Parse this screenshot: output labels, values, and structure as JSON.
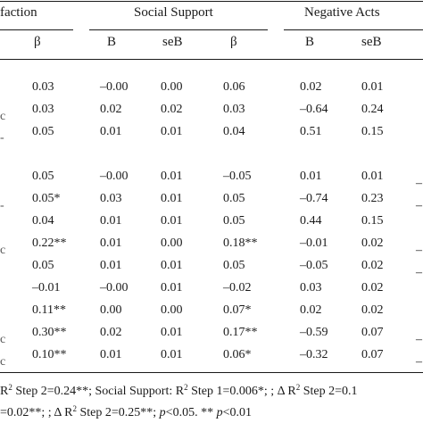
{
  "table": {
    "group_headers": [
      {
        "label": "faction"
      },
      {
        "label": "Social Support"
      },
      {
        "label": "Negative Acts"
      }
    ],
    "sub_headers": [
      "β",
      "B",
      "seB",
      "β",
      "B",
      "seB"
    ],
    "rows": [
      [
        "0.03",
        "–0.00",
        "0.00",
        "0.06",
        "0.02",
        "0.01"
      ],
      [
        "0.03",
        "0.02",
        "0.02",
        "0.03",
        "–0.64",
        "0.24"
      ],
      [
        "0.05",
        "0.01",
        "0.01",
        "0.04",
        "0.51",
        "0.15"
      ],
      [
        "0.05",
        "–0.00",
        "0.01",
        "–0.05",
        "0.01",
        "0.01"
      ],
      [
        "0.05*",
        "0.03",
        "0.01",
        "0.05",
        "–0.74",
        "0.23"
      ],
      [
        "0.04",
        "0.01",
        "0.01",
        "0.05",
        "0.44",
        "0.15"
      ],
      [
        "0.22**",
        "0.01",
        "0.00",
        "0.18**",
        "–0.01",
        "0.02"
      ],
      [
        "0.05",
        "0.01",
        "0.01",
        "0.05",
        "–0.05",
        "0.02"
      ],
      [
        "–0.01",
        "–0.00",
        "0.01",
        "–0.02",
        "0.03",
        "0.02"
      ],
      [
        "0.11**",
        "0.00",
        "0.00",
        "0.07*",
        "0.02",
        "0.02"
      ],
      [
        "0.30**",
        "0.02",
        "0.01",
        "0.17**",
        "–0.59",
        "0.07"
      ],
      [
        "0.10**",
        "0.01",
        "0.01",
        "0.06*",
        "–0.32",
        "0.07"
      ]
    ],
    "left_edge_marks": [
      "c",
      "c",
      "c",
      "c",
      "-",
      "-"
    ],
    "right_edge_marks": [
      "–",
      "–",
      "–",
      "–",
      "–",
      "–"
    ]
  },
  "footnote": {
    "line1_a": "R",
    "line1_sup1": "2",
    "line1_b": " Step 2=0.24**; Social Support: R",
    "line1_sup2": "2",
    "line1_c": " Step 1=0.006*; ; Δ R",
    "line1_sup3": "2",
    "line1_d": " Step 2=0.1",
    "line2_a": "=0.02**; ; Δ R",
    "line2_sup": "2",
    "line2_b": " Step 2=0.25**; ",
    "line2_p1": "p",
    "line2_c": "<0.05. ** ",
    "line2_p2": "p",
    "line2_d": "<0.01"
  }
}
